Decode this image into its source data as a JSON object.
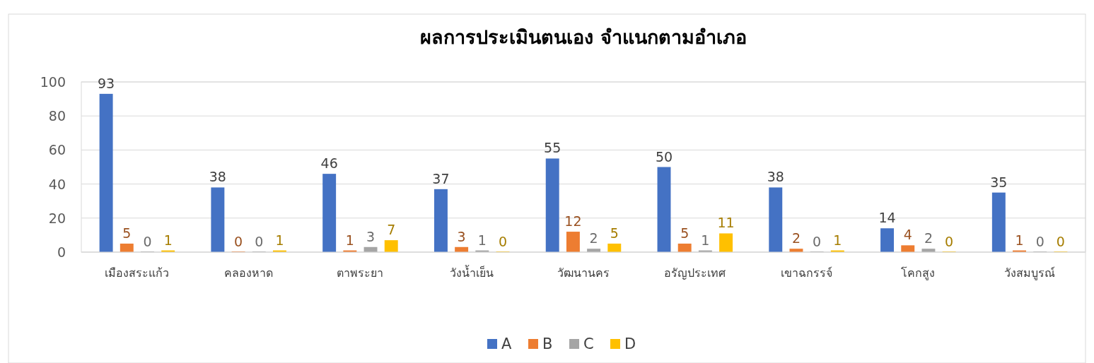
{
  "chart_data": {
    "type": "bar",
    "title": "ผลการประเมินตนเอง จำแนกตามอำเภอ",
    "categories": [
      "เมืองสระแก้ว",
      "คลองหาด",
      "ตาพระยา",
      "วังน้ำเย็น",
      "วัฒนานคร",
      "อรัญประเทศ",
      "เขาฉกรรจ์",
      "โคกสูง",
      "วังสมบูรณ์"
    ],
    "series": [
      {
        "name": "A",
        "color": "#4472c4",
        "values": [
          93,
          38,
          46,
          37,
          55,
          50,
          38,
          14,
          35
        ]
      },
      {
        "name": "B",
        "color": "#ed7d31",
        "values": [
          5,
          0,
          1,
          3,
          12,
          5,
          2,
          4,
          1
        ]
      },
      {
        "name": "C",
        "color": "#a5a5a5",
        "values": [
          0,
          0,
          3,
          1,
          2,
          1,
          0,
          2,
          0
        ]
      },
      {
        "name": "D",
        "color": "#ffc000",
        "values": [
          1,
          1,
          7,
          0,
          5,
          11,
          1,
          0,
          0
        ]
      }
    ],
    "ylim": [
      0,
      100
    ],
    "yticks": [
      0,
      20,
      40,
      60,
      80,
      100
    ],
    "grid": "y",
    "legend": "bottom",
    "data_labels": true
  }
}
